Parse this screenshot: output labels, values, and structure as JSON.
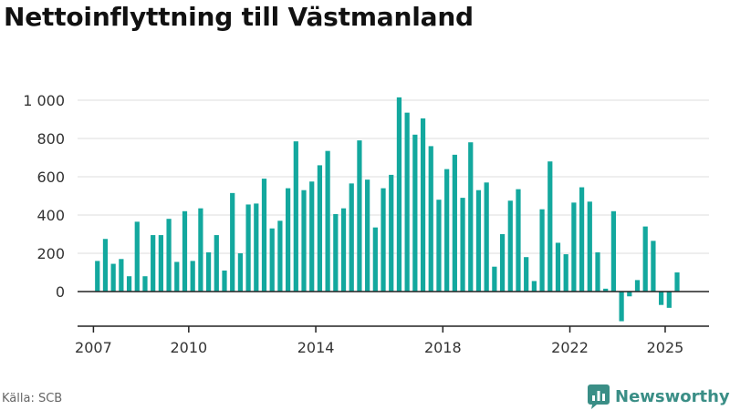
{
  "colors": {
    "bar": "#13a89e",
    "grid": "#dddddd",
    "baseline": "#222222",
    "text": "#333333",
    "brand": "#3a8e86"
  },
  "chart_data": {
    "type": "bar",
    "title": "Nettoinflyttning till Västmanland",
    "xlabel": "",
    "ylabel": "",
    "ylim": [
      -165,
      1000
    ],
    "yticks": [
      0,
      200,
      400,
      600,
      800,
      1000
    ],
    "ytick_labels": [
      "0",
      "200",
      "400",
      "600",
      "800",
      "1 000"
    ],
    "xlim": [
      2006.5,
      2026.38
    ],
    "xticks": [
      2007,
      2010,
      2014,
      2018,
      2022,
      2025
    ],
    "xtick_labels": [
      "2007",
      "2010",
      "2014",
      "2018",
      "2022",
      "2025"
    ],
    "grid": true,
    "x_interval": "quarter",
    "categories": [
      "2007 Q1",
      "2007 Q2",
      "2007 Q3",
      "2007 Q4",
      "2008 Q1",
      "2008 Q2",
      "2008 Q3",
      "2008 Q4",
      "2009 Q1",
      "2009 Q2",
      "2009 Q3",
      "2009 Q4",
      "2010 Q1",
      "2010 Q2",
      "2010 Q3",
      "2010 Q4",
      "2011 Q1",
      "2011 Q2",
      "2011 Q3",
      "2011 Q4",
      "2012 Q1",
      "2012 Q2",
      "2012 Q3",
      "2012 Q4",
      "2013 Q1",
      "2013 Q2",
      "2013 Q3",
      "2013 Q4",
      "2014 Q1",
      "2014 Q2",
      "2014 Q3",
      "2014 Q4",
      "2015 Q1",
      "2015 Q2",
      "2015 Q3",
      "2015 Q4",
      "2016 Q1",
      "2016 Q2",
      "2016 Q3",
      "2016 Q4",
      "2017 Q1",
      "2017 Q2",
      "2017 Q3",
      "2017 Q4",
      "2018 Q1",
      "2018 Q2",
      "2018 Q3",
      "2018 Q4",
      "2019 Q1",
      "2019 Q2",
      "2019 Q3",
      "2019 Q4",
      "2020 Q1",
      "2020 Q2",
      "2020 Q3",
      "2020 Q4",
      "2021 Q1",
      "2021 Q2",
      "2021 Q3",
      "2021 Q4",
      "2022 Q1",
      "2022 Q2",
      "2022 Q3",
      "2022 Q4",
      "2023 Q1",
      "2023 Q2",
      "2023 Q3",
      "2023 Q4",
      "2024 Q1",
      "2024 Q2",
      "2024 Q3",
      "2024 Q4",
      "2025 Q1",
      "2025 Q2"
    ],
    "values": [
      160,
      275,
      145,
      170,
      80,
      365,
      80,
      295,
      295,
      380,
      155,
      420,
      160,
      435,
      205,
      295,
      110,
      515,
      200,
      455,
      460,
      590,
      330,
      370,
      540,
      785,
      530,
      575,
      660,
      735,
      405,
      435,
      565,
      790,
      585,
      335,
      540,
      610,
      1015,
      935,
      820,
      905,
      760,
      480,
      640,
      715,
      490,
      780,
      530,
      570,
      130,
      300,
      475,
      535,
      180,
      55,
      430,
      680,
      255,
      195,
      465,
      545,
      470,
      205,
      15,
      420,
      -155,
      -25,
      60,
      340,
      265,
      -70,
      -85,
      100
    ]
  },
  "footer": {
    "source": "Källa: SCB",
    "brand": "Newsworthy",
    "brand_icon": "bar-chart-logo-icon"
  }
}
